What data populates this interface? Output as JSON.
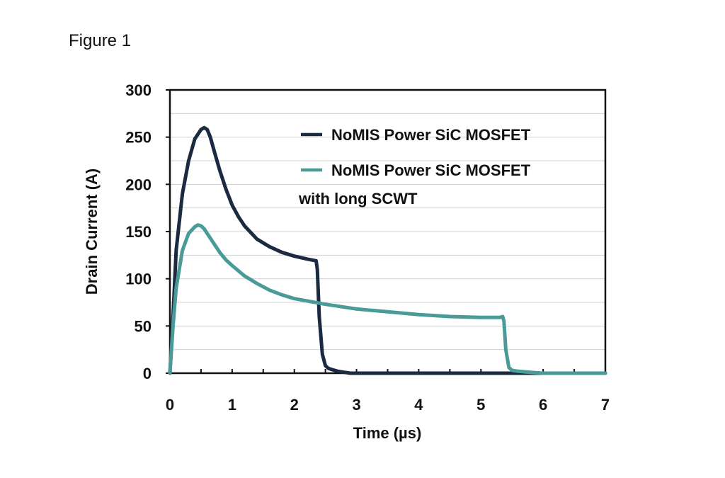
{
  "figure_label": "Figure 1",
  "chart_data": {
    "type": "line",
    "title": "",
    "xlabel": "Time (µs)",
    "ylabel": "Drain Current (A)",
    "xlim": [
      0,
      7
    ],
    "ylim": [
      0,
      300
    ],
    "xticks": [
      0,
      1,
      2,
      3,
      4,
      5,
      6,
      7
    ],
    "yticks": [
      0,
      50,
      100,
      150,
      200,
      250,
      300
    ],
    "grid": "horizontal",
    "legend_position": "top-right",
    "series": [
      {
        "name": "NoMIS Power SiC MOSFET",
        "color": "#1b2a41",
        "x": [
          0,
          0.05,
          0.1,
          0.2,
          0.3,
          0.4,
          0.5,
          0.55,
          0.6,
          0.65,
          0.7,
          0.8,
          0.9,
          1.0,
          1.1,
          1.2,
          1.4,
          1.6,
          1.8,
          2.0,
          2.2,
          2.35,
          2.37,
          2.4,
          2.45,
          2.5,
          2.55,
          2.6,
          2.7,
          2.8,
          2.9,
          3.0,
          7.0
        ],
        "y": [
          0,
          60,
          130,
          190,
          225,
          248,
          258,
          260,
          258,
          250,
          238,
          215,
          195,
          178,
          166,
          156,
          142,
          134,
          128,
          124,
          121,
          119,
          110,
          60,
          20,
          8,
          5,
          4,
          2,
          1,
          0,
          0,
          0
        ]
      },
      {
        "name": "NoMIS Power SiC MOSFET with long SCWT",
        "color": "#4a9a98",
        "x": [
          0,
          0.05,
          0.1,
          0.2,
          0.3,
          0.4,
          0.45,
          0.5,
          0.55,
          0.6,
          0.7,
          0.8,
          0.9,
          1.0,
          1.2,
          1.4,
          1.6,
          1.8,
          2.0,
          2.5,
          3.0,
          3.5,
          4.0,
          4.5,
          5.0,
          5.3,
          5.35,
          5.37,
          5.4,
          5.45,
          5.5,
          5.6,
          5.8,
          6.0,
          7.0
        ],
        "y": [
          0,
          50,
          90,
          130,
          148,
          155,
          157,
          156,
          153,
          148,
          138,
          128,
          120,
          114,
          103,
          95,
          88,
          83,
          79,
          73,
          68,
          65,
          62,
          60,
          59,
          59,
          60,
          55,
          25,
          6,
          3,
          2,
          1,
          0,
          0
        ]
      }
    ]
  }
}
